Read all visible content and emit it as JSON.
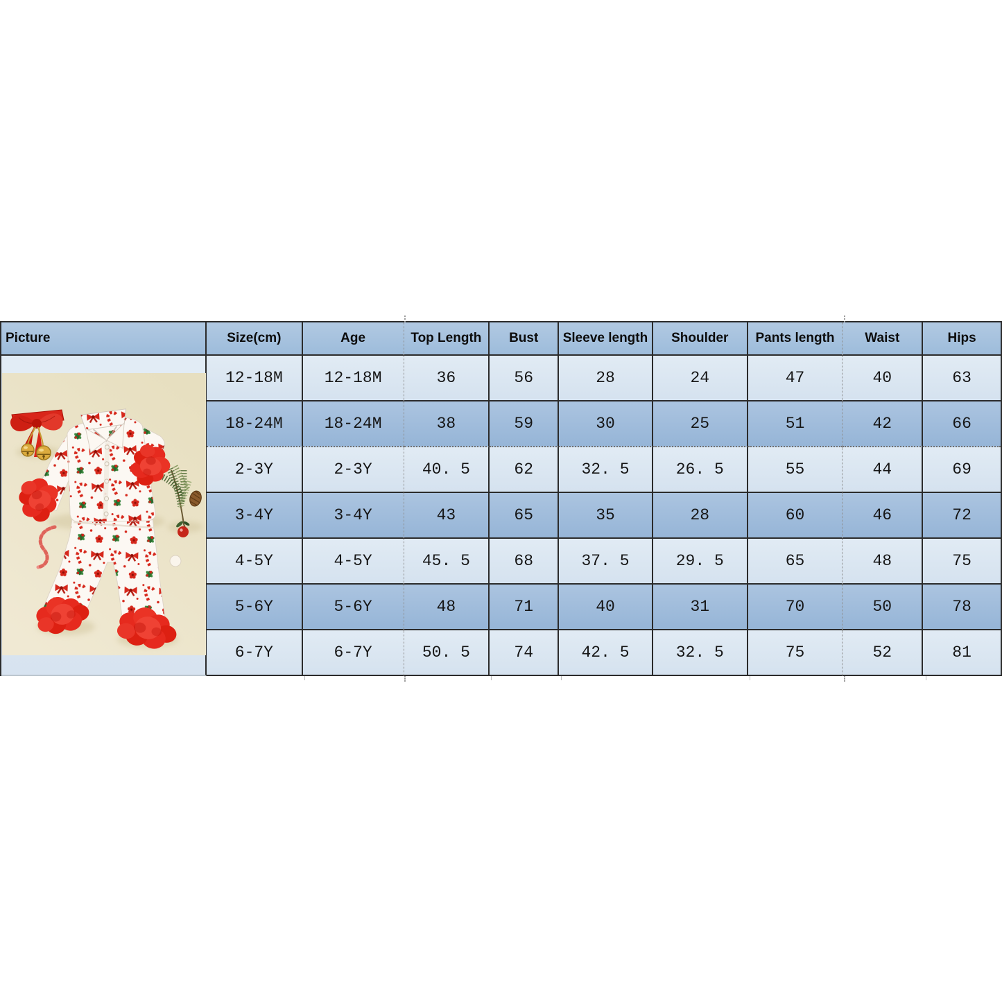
{
  "window": {
    "background": "#ffffff"
  },
  "size_chart": {
    "columns": [
      "Picture",
      "Size(cm)",
      "Age",
      "Top Length",
      "Bust",
      "Sleeve length",
      "Shoulder",
      "Pants length",
      "Waist",
      "Hips"
    ],
    "rows": [
      [
        "12-18M",
        "12-18M",
        "36",
        "56",
        "28",
        "24",
        "47",
        "40",
        "63"
      ],
      [
        "18-24M",
        "18-24M",
        "38",
        "59",
        "30",
        "25",
        "51",
        "42",
        "66"
      ],
      [
        "2-3Y",
        "2-3Y",
        "40. 5",
        "62",
        "32. 5",
        "26. 5",
        "55",
        "44",
        "69"
      ],
      [
        "3-4Y",
        "3-4Y",
        "43",
        "65",
        "35",
        "28",
        "60",
        "46",
        "72"
      ],
      [
        "4-5Y",
        "4-5Y",
        "45. 5",
        "68",
        "37. 5",
        "29. 5",
        "65",
        "48",
        "75"
      ],
      [
        "5-6Y",
        "5-6Y",
        "48",
        "71",
        "40",
        "31",
        "70",
        "50",
        "78"
      ],
      [
        "6-7Y",
        "6-7Y",
        "50. 5",
        "74",
        "42. 5",
        "32. 5",
        "75",
        "52",
        "81"
      ]
    ],
    "colors": {
      "header_bg": "#a7c2de",
      "row_dark": "#9ebcdc",
      "row_light": "#dde8f3",
      "grid_line": "#2b2b2b",
      "page_break_line": "#999999"
    }
  },
  "picture_cell": {
    "photo_name": "christmas-pajama-set-flat-lay-photo",
    "photo_background": "#eae2c6",
    "accent_red": "#d6281c",
    "holly_green": "#2f7a33",
    "gold": "#d9a93c",
    "photo_elements": [
      "red-ribbon-bow-with-gold-jingle-bells",
      "pajama-top-candy-cane-bow-holly-print",
      "red-faux-fur-cuffs",
      "pajama-pants-with-fur-hems",
      "greenery-sprig-with-pinecone",
      "red-berry",
      "white-pom-pom",
      "red-twisted-cord"
    ]
  }
}
